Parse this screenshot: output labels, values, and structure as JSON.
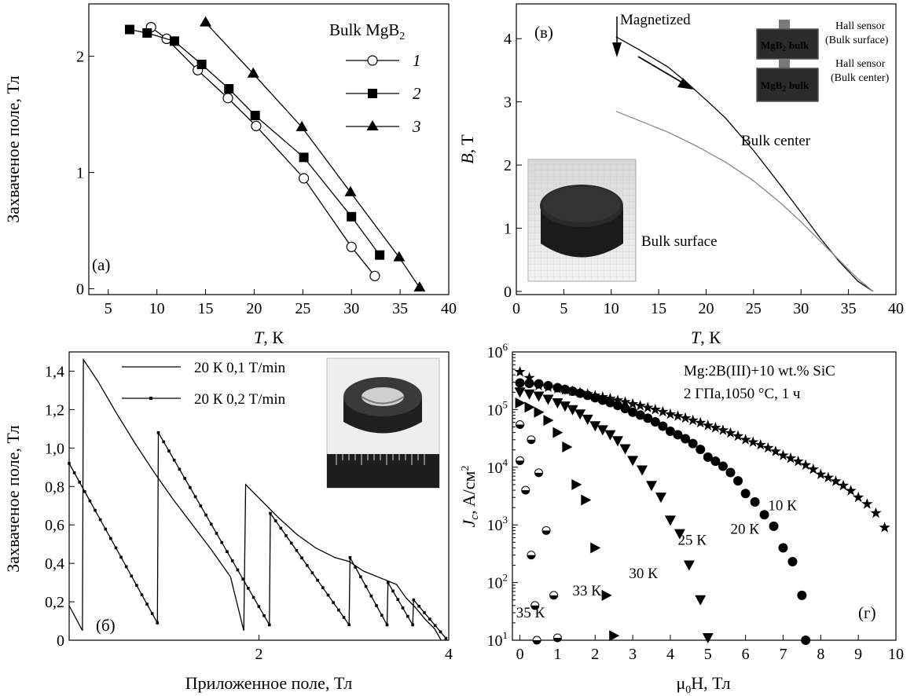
{
  "chart_data": [
    {
      "panel": "(a)",
      "type": "line",
      "xlabel": "T, К",
      "ylabel": "Захваченое поле, Тл",
      "xlim": [
        3,
        40
      ],
      "ylim": [
        -0.05,
        2.45
      ],
      "xticks": [
        5,
        10,
        15,
        20,
        25,
        30,
        35,
        40
      ],
      "yticks": [
        0,
        1,
        2
      ],
      "legend_title": "Bulk MgB",
      "legend_title_sub": "2",
      "legend_position": "top-right",
      "series": [
        {
          "name": "1",
          "marker": "open-circle",
          "points": [
            [
              9.4,
              2.25
            ],
            [
              11,
              2.15
            ],
            [
              14.2,
              1.88
            ],
            [
              17.3,
              1.64
            ],
            [
              20.2,
              1.4
            ],
            [
              25.1,
              0.95
            ],
            [
              30,
              0.36
            ],
            [
              32.4,
              0.11
            ]
          ]
        },
        {
          "name": "2",
          "marker": "square",
          "points": [
            [
              7.2,
              2.23
            ],
            [
              9,
              2.2
            ],
            [
              11.8,
              2.13
            ],
            [
              14.6,
              1.93
            ],
            [
              17.4,
              1.72
            ],
            [
              20.1,
              1.49
            ],
            [
              25.1,
              1.13
            ],
            [
              30,
              0.62
            ],
            [
              32.9,
              0.29
            ]
          ]
        },
        {
          "name": "3",
          "marker": "triangle",
          "points": [
            [
              15,
              2.29
            ],
            [
              19.9,
              1.85
            ],
            [
              24.9,
              1.39
            ],
            [
              29.9,
              0.83
            ],
            [
              34.9,
              0.27
            ],
            [
              37,
              0.01
            ]
          ]
        }
      ]
    },
    {
      "panel": "(в)",
      "type": "line",
      "xlabel": "T, К",
      "ylabel": "B, T",
      "xlim": [
        0,
        40
      ],
      "ylim": [
        -0.05,
        4.55
      ],
      "xticks": [
        0,
        5,
        10,
        15,
        20,
        25,
        30,
        35,
        40
      ],
      "yticks": [
        0,
        1,
        2,
        3,
        4
      ],
      "series": [
        {
          "name": "Bulk center",
          "color": "#000000",
          "points": [
            [
              10.5,
              4.03
            ],
            [
              13,
              3.82
            ],
            [
              16,
              3.55
            ],
            [
              18,
              3.3
            ],
            [
              20,
              3.03
            ],
            [
              22,
              2.75
            ],
            [
              25,
              2.23
            ],
            [
              28,
              1.65
            ],
            [
              30,
              1.25
            ],
            [
              32,
              0.85
            ],
            [
              34,
              0.48
            ],
            [
              36,
              0.16
            ],
            [
              37.6,
              0.0
            ]
          ]
        },
        {
          "name": "Bulk surface",
          "color": "#888888",
          "points": [
            [
              10.5,
              2.85
            ],
            [
              13,
              2.7
            ],
            [
              16,
              2.52
            ],
            [
              19,
              2.3
            ],
            [
              22,
              2.05
            ],
            [
              25,
              1.75
            ],
            [
              28,
              1.38
            ],
            [
              30,
              1.1
            ],
            [
              32,
              0.8
            ],
            [
              34,
              0.5
            ],
            [
              36,
              0.2
            ],
            [
              37.6,
              0.0
            ]
          ]
        }
      ],
      "annotations": [
        "Magnetized",
        "Bulk center",
        "Bulk surface",
        "Hall sensor",
        "(Bulk surface)",
        "Hall sensor",
        "(Bulk center)",
        "MgB",
        "bulk"
      ]
    },
    {
      "panel": "(б)",
      "type": "line",
      "xlabel": "Приложенное поле, Тл",
      "ylabel": "Захваченое поле, Тл",
      "xlim": [
        0,
        4
      ],
      "ylim": [
        0,
        1.5
      ],
      "xticks": [
        2,
        4
      ],
      "yticks": [
        0,
        0.2,
        0.4,
        0.6,
        0.8,
        1.0,
        1.2,
        1.4
      ],
      "ytick_labels": [
        "0",
        "0,2",
        "0,4",
        "0,6",
        "0,8",
        "1,0",
        "1,2",
        "1,4"
      ],
      "series": [
        {
          "name": "20 К 0,1 T/min",
          "marker": "none",
          "points": [
            [
              0,
              0.18
            ],
            [
              0.14,
              0.05
            ],
            [
              0.15,
              1.46
            ],
            [
              0.3,
              1.35
            ],
            [
              0.5,
              1.18
            ],
            [
              0.7,
              1.02
            ],
            [
              0.9,
              0.87
            ],
            [
              1.1,
              0.73
            ],
            [
              1.3,
              0.6
            ],
            [
              1.5,
              0.47
            ],
            [
              1.7,
              0.33
            ],
            [
              1.84,
              0.05
            ],
            [
              1.86,
              0.81
            ],
            [
              2.0,
              0.74
            ],
            [
              2.2,
              0.64
            ],
            [
              2.4,
              0.55
            ],
            [
              2.6,
              0.48
            ],
            [
              2.8,
              0.43
            ],
            [
              2.95,
              0.41
            ],
            [
              3.1,
              0.36
            ],
            [
              3.3,
              0.32
            ],
            [
              3.45,
              0.29
            ],
            [
              3.55,
              0.22
            ],
            [
              3.65,
              0.17
            ],
            [
              3.75,
              0.11
            ],
            [
              3.85,
              0.06
            ],
            [
              3.92,
              0.0
            ]
          ]
        },
        {
          "name": "20 К 0,2 T/min",
          "marker": "small-dot",
          "points": [
            [
              0,
              0.92
            ],
            [
              0.93,
              0.09
            ],
            [
              0.94,
              1.08
            ],
            [
              2.11,
              0.08
            ],
            [
              2.12,
              0.66
            ],
            [
              2.95,
              0.08
            ],
            [
              2.96,
              0.43
            ],
            [
              3.35,
              0.08
            ],
            [
              3.36,
              0.3
            ],
            [
              3.62,
              0.08
            ],
            [
              3.63,
              0.21
            ],
            [
              3.97,
              0.01
            ]
          ]
        }
      ],
      "legend_position": "top-center"
    },
    {
      "panel": "(г)",
      "type": "scatter",
      "xlabel": "μ0H, Тл",
      "ylabel": "Jc, A/см2",
      "yscale": "log",
      "xlim": [
        -0.2,
        10
      ],
      "ylim": [
        10,
        1000000
      ],
      "xticks": [
        0,
        1,
        2,
        3,
        4,
        5,
        6,
        7,
        8,
        9,
        10
      ],
      "yticks": [
        10,
        100,
        1000,
        10000,
        100000,
        1000000
      ],
      "title": "Mg:2B(III)+10 wt.% SiC",
      "subtitle": "2 ГПа,1050 °C, 1 ч",
      "series": [
        {
          "name": "10 K",
          "marker": "star",
          "points": [
            [
              0,
              450000
            ],
            [
              0.5,
              260000
            ],
            [
              1,
              230000
            ],
            [
              2,
              175000
            ],
            [
              3,
              125000
            ],
            [
              4,
              83000
            ],
            [
              5,
              53000
            ],
            [
              6,
              30000
            ],
            [
              7,
              16000
            ],
            [
              8,
              7500
            ],
            [
              9,
              3000
            ],
            [
              9.7,
              900
            ]
          ]
        },
        {
          "name": "20 K",
          "marker": "filled-circle",
          "points": [
            [
              0,
              290000
            ],
            [
              0.5,
              280000
            ],
            [
              1,
              240000
            ],
            [
              2,
              160000
            ],
            [
              3,
              90000
            ],
            [
              4,
              42000
            ],
            [
              5,
              15000
            ],
            [
              6,
              3500
            ],
            [
              6.5,
              1500
            ],
            [
              7,
              400
            ],
            [
              7.5,
              60
            ],
            [
              7.6,
              10
            ]
          ]
        },
        {
          "name": "25 K",
          "marker": "down-triangle",
          "points": [
            [
              0,
              200000
            ],
            [
              0.5,
              170000
            ],
            [
              1,
              130000
            ],
            [
              2,
              52000
            ],
            [
              3,
              13000
            ],
            [
              3.5,
              4800
            ],
            [
              4,
              1200
            ],
            [
              4.5,
              200
            ],
            [
              4.8,
              50
            ],
            [
              5,
              11
            ]
          ]
        },
        {
          "name": "30 K",
          "marker": "right-triangle",
          "points": [
            [
              0,
              130000
            ],
            [
              0.5,
              90000
            ],
            [
              1,
              40000
            ],
            [
              1.5,
              5000
            ],
            [
              2,
              400
            ],
            [
              2.3,
              60
            ],
            [
              2.5,
              12
            ]
          ]
        },
        {
          "name": "33 K",
          "marker": "half-circle",
          "points": [
            [
              0,
              55000
            ],
            [
              0.3,
              30000
            ],
            [
              0.5,
              8000
            ],
            [
              0.7,
              800
            ],
            [
              0.9,
              60
            ],
            [
              1,
              11
            ]
          ]
        },
        {
          "name": "35 K",
          "marker": "half-circle",
          "points": [
            [
              0,
              13000
            ],
            [
              0.15,
              4000
            ],
            [
              0.3,
              300
            ],
            [
              0.4,
              40
            ],
            [
              0.45,
              10
            ]
          ]
        }
      ],
      "curve_labels": [
        "10 К",
        "20 К",
        "25 К",
        "30 К",
        "33 К",
        "35 К"
      ]
    }
  ],
  "labels": {
    "a_panel": "(а)",
    "a_ylabel": "Захваченое поле, Тл",
    "a_xlabel_italic": "T",
    "a_xlabel_rest": ", К",
    "a_legend_title": "Bulk MgB",
    "a_legend_title_sub": "2",
    "a_legend_1": "1",
    "a_legend_2": "2",
    "a_legend_3": "3",
    "b_panel": "(в)",
    "b_ylabel_italic": "B",
    "b_ylabel_rest": ", T",
    "b_xlabel_italic": "T",
    "b_xlabel_rest": ", К",
    "b_magnetized": "Magnetized",
    "b_bulk_center": "Bulk center",
    "b_bulk_surface": "Bulk surface",
    "b_hall1": "Hall sensor",
    "b_hall1b": "(Bulk surface)",
    "b_hall2": "Hall sensor",
    "b_hall2b": "(Bulk center)",
    "b_mgb": "MgB",
    "b_mgb_sub": "2",
    "b_bulk": "bulk",
    "c_panel": "(б)",
    "c_ylabel": "Захваченое поле, Тл",
    "c_xlabel": "Приложенное поле, Тл",
    "c_legend_1": "20 К 0,1 T/min",
    "c_legend_2": "20 К 0,2 T/min",
    "d_panel": "(г)",
    "d_title": "Mg:2B(III)+10 wt.% SiC",
    "d_subtitle": "2 ГПа,1050 °C, 1 ч",
    "d_xlabel_mu": "μ",
    "d_xlabel_sub": "0",
    "d_xlabel_rest": "H, Тл",
    "d_ylabel_j": "J",
    "d_ylabel_c": "c",
    "d_ylabel_rest": ", A/см",
    "d_ylabel_sup": "2"
  }
}
